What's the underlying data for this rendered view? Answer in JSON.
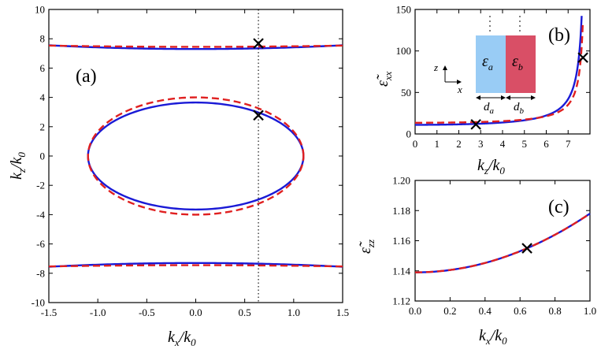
{
  "chart_data": [
    {
      "id": "a",
      "type": "line",
      "panel_label": "(a)",
      "xlabel": "k",
      "xlabel_sub": "x",
      "xlabel_den": "/k",
      "xlabel_den_sub": "0",
      "ylabel": "k",
      "ylabel_sub": "z",
      "ylabel_den": "/k",
      "ylabel_den_sub": "0",
      "xlim": [
        -1.5,
        1.5
      ],
      "ylim": [
        -10,
        10
      ],
      "xticks": [
        "-1.5",
        "-1.0",
        "-0.5",
        "0.0",
        "0.5",
        "1.0",
        "1.5"
      ],
      "yticks": [
        "-10",
        "-8",
        "-6",
        "-4",
        "-2",
        "0",
        "2",
        "4",
        "6",
        "8",
        "10"
      ],
      "vline_x": 0.64,
      "markers": [
        [
          0.64,
          7.68
        ],
        [
          0.64,
          2.78
        ]
      ],
      "series": [
        {
          "style": "solid",
          "color": "#1a1ad6",
          "ellipse": {
            "a": 1.1,
            "b": 3.65
          },
          "hyperbola": {
            "c": 7.3,
            "d": 1.3
          }
        },
        {
          "style": "dashed",
          "color": "#e02020",
          "ellipse": {
            "a": 1.1,
            "b": 4.0
          },
          "hyperbola": {
            "c": 7.45,
            "d": 0.75
          }
        }
      ]
    },
    {
      "id": "b",
      "type": "line",
      "panel_label": "(b)",
      "xlabel": "k",
      "xlabel_sub": "z",
      "xlabel_den": "/k",
      "xlabel_den_sub": "0",
      "ylabel": "ε̃",
      "ylabel_sub": "xx",
      "xlim": [
        0,
        8
      ],
      "ylim": [
        0,
        150
      ],
      "xticks": [
        "0",
        "1",
        "2",
        "3",
        "4",
        "5",
        "6",
        "7"
      ],
      "yticks": [
        "0",
        "50",
        "100",
        "150"
      ],
      "markers": [
        [
          2.78,
          11.5
        ],
        [
          7.68,
          92
        ]
      ],
      "series": [
        {
          "style": "solid",
          "color": "#1a1ad6",
          "model": {
            "base": 11,
            "scale": 8,
            "pole": 7.85
          }
        },
        {
          "style": "dashed",
          "color": "#e02020",
          "model": {
            "base": 13.5,
            "scale": 5.6,
            "pole": 7.85
          }
        }
      ],
      "inset": {
        "eps_a": "ε",
        "eps_a_sub": "a",
        "eps_b": "ε",
        "eps_b_sub": "b",
        "d_a": "d",
        "d_a_sub": "a",
        "d_b": "d",
        "d_b_sub": "b",
        "axis_z": "z",
        "axis_x": "x",
        "color_a": "#99ccf5",
        "color_b": "#d94f66"
      }
    },
    {
      "id": "c",
      "type": "line",
      "panel_label": "(c)",
      "xlabel": "k",
      "xlabel_sub": "x",
      "xlabel_den": "/k",
      "xlabel_den_sub": "0",
      "ylabel": "ε̃",
      "ylabel_sub": "zz",
      "xlim": [
        0,
        1
      ],
      "ylim": [
        1.12,
        1.2
      ],
      "xticks": [
        "0.0",
        "0.2",
        "0.4",
        "0.6",
        "0.8",
        "1.0"
      ],
      "yticks": [
        "1.12",
        "1.14",
        "1.16",
        "1.18",
        "1.20"
      ],
      "markers": [
        [
          0.64,
          1.155
        ]
      ],
      "series": [
        {
          "style": "solid",
          "color": "#1a1ad6",
          "model": {
            "c0": 1.139,
            "c2": 0.039
          }
        },
        {
          "style": "dashed",
          "color": "#e02020",
          "model": {
            "c0": 1.139,
            "c2": 0.039
          }
        }
      ]
    }
  ]
}
